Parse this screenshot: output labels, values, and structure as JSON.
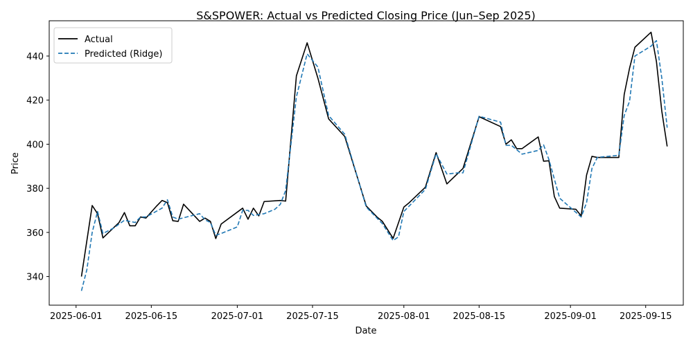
{
  "chart_data": {
    "type": "line",
    "title": "S&SPOWER: Actual vs Predicted Closing Price (Jun–Sep 2025)",
    "xlabel": "Date",
    "ylabel": "Price",
    "x_ticks": [
      "2025-06-01",
      "2025-06-15",
      "2025-07-01",
      "2025-07-15",
      "2025-08-01",
      "2025-08-15",
      "2025-09-01",
      "2025-09-15"
    ],
    "y_ticks": [
      "340",
      "360",
      "380",
      "400",
      "420",
      "440"
    ],
    "xlim": [
      "2025-05-27",
      "2025-09-22"
    ],
    "ylim": [
      327,
      456
    ],
    "grid": false,
    "legend_position": "top-left",
    "series": [
      {
        "name": "Actual",
        "color": "#000000",
        "style": "solid",
        "points": [
          [
            "2025-06-02",
            340
          ],
          [
            "2025-06-04",
            372.2
          ],
          [
            "2025-06-05",
            368.5
          ],
          [
            "2025-06-06",
            357.5
          ],
          [
            "2025-06-09",
            364.5
          ],
          [
            "2025-06-10",
            369
          ],
          [
            "2025-06-11",
            363
          ],
          [
            "2025-06-12",
            363
          ],
          [
            "2025-06-13",
            367
          ],
          [
            "2025-06-14",
            366.5
          ],
          [
            "2025-06-16",
            372
          ],
          [
            "2025-06-17",
            374.5
          ],
          [
            "2025-06-18",
            373.5
          ],
          [
            "2025-06-19",
            365.3
          ],
          [
            "2025-06-20",
            365
          ],
          [
            "2025-06-21",
            372.8
          ],
          [
            "2025-06-24",
            365
          ],
          [
            "2025-06-25",
            366.5
          ],
          [
            "2025-06-26",
            365
          ],
          [
            "2025-06-27",
            357.2
          ],
          [
            "2025-06-28",
            363.8
          ],
          [
            "2025-07-02",
            371
          ],
          [
            "2025-07-03",
            366
          ],
          [
            "2025-07-04",
            371
          ],
          [
            "2025-07-05",
            367.5
          ],
          [
            "2025-07-06",
            374
          ],
          [
            "2025-07-09",
            374.5
          ],
          [
            "2025-07-10",
            374.2
          ],
          [
            "2025-07-12",
            431
          ],
          [
            "2025-07-14",
            446
          ],
          [
            "2025-07-16",
            430
          ],
          [
            "2025-07-18",
            411.5
          ],
          [
            "2025-07-21",
            403.5
          ],
          [
            "2025-07-25",
            372
          ],
          [
            "2025-07-27",
            367
          ],
          [
            "2025-07-28",
            365
          ],
          [
            "2025-07-30",
            357.3
          ],
          [
            "2025-08-01",
            371.5
          ],
          [
            "2025-08-02",
            373.5
          ],
          [
            "2025-08-05",
            380.5
          ],
          [
            "2025-08-07",
            396.2
          ],
          [
            "2025-08-09",
            382
          ],
          [
            "2025-08-12",
            389
          ],
          [
            "2025-08-15",
            412.5
          ],
          [
            "2025-08-19",
            408
          ],
          [
            "2025-08-20",
            400
          ],
          [
            "2025-08-21",
            402
          ],
          [
            "2025-08-22",
            398
          ],
          [
            "2025-08-23",
            398
          ],
          [
            "2025-08-26",
            403.3
          ],
          [
            "2025-08-27",
            392.3
          ],
          [
            "2025-08-28",
            392.5
          ],
          [
            "2025-08-29",
            376.3
          ],
          [
            "2025-08-30",
            371
          ],
          [
            "2025-09-02",
            370.5
          ],
          [
            "2025-09-03",
            367.5
          ],
          [
            "2025-09-04",
            386
          ],
          [
            "2025-09-05",
            394.5
          ],
          [
            "2025-09-06",
            394
          ],
          [
            "2025-09-10",
            394
          ],
          [
            "2025-09-11",
            422.5
          ],
          [
            "2025-09-12",
            434.5
          ],
          [
            "2025-09-13",
            444
          ],
          [
            "2025-09-16",
            450.8
          ],
          [
            "2025-09-17",
            437.5
          ],
          [
            "2025-09-18",
            415
          ],
          [
            "2025-09-19",
            399
          ]
        ]
      },
      {
        "name": "Predicted (Ridge)",
        "color": "#1f77b4",
        "style": "dashed",
        "points": [
          [
            "2025-06-02",
            333.5
          ],
          [
            "2025-06-03",
            343
          ],
          [
            "2025-06-04",
            360
          ],
          [
            "2025-06-05",
            369.5
          ],
          [
            "2025-06-06",
            359.5
          ],
          [
            "2025-06-08",
            362
          ],
          [
            "2025-06-10",
            365.5
          ],
          [
            "2025-06-12",
            364.5
          ],
          [
            "2025-06-13",
            367
          ],
          [
            "2025-06-14",
            367
          ],
          [
            "2025-06-17",
            371
          ],
          [
            "2025-06-18",
            374.8
          ],
          [
            "2025-06-19",
            367
          ],
          [
            "2025-06-20",
            366
          ],
          [
            "2025-06-24",
            368.5
          ],
          [
            "2025-06-25",
            365.7
          ],
          [
            "2025-06-26",
            364.5
          ],
          [
            "2025-06-27",
            358.7
          ],
          [
            "2025-06-28",
            359.5
          ],
          [
            "2025-07-01",
            362.5
          ],
          [
            "2025-07-02",
            370
          ],
          [
            "2025-07-03",
            370
          ],
          [
            "2025-07-04",
            367.7
          ],
          [
            "2025-07-06",
            368.5
          ],
          [
            "2025-07-08",
            370.5
          ],
          [
            "2025-07-09",
            372.7
          ],
          [
            "2025-07-10",
            379
          ],
          [
            "2025-07-12",
            421.5
          ],
          [
            "2025-07-14",
            441
          ],
          [
            "2025-07-16",
            435
          ],
          [
            "2025-07-18",
            413
          ],
          [
            "2025-07-21",
            404.5
          ],
          [
            "2025-07-25",
            371.5
          ],
          [
            "2025-07-28",
            364
          ],
          [
            "2025-07-30",
            356.3
          ],
          [
            "2025-07-31",
            358
          ],
          [
            "2025-08-01",
            369.5
          ],
          [
            "2025-08-05",
            379.5
          ],
          [
            "2025-08-07",
            395.7
          ],
          [
            "2025-08-09",
            386.5
          ],
          [
            "2025-08-11",
            387
          ],
          [
            "2025-08-12",
            387
          ],
          [
            "2025-08-15",
            412.7
          ],
          [
            "2025-08-19",
            410
          ],
          [
            "2025-08-20",
            399.5
          ],
          [
            "2025-08-21",
            399.5
          ],
          [
            "2025-08-23",
            395.5
          ],
          [
            "2025-08-26",
            397.2
          ],
          [
            "2025-08-27",
            399.7
          ],
          [
            "2025-08-28",
            393
          ],
          [
            "2025-08-30",
            375.5
          ],
          [
            "2025-09-03",
            367
          ],
          [
            "2025-09-04",
            373.5
          ],
          [
            "2025-09-05",
            389
          ],
          [
            "2025-09-06",
            394
          ],
          [
            "2025-09-10",
            395
          ],
          [
            "2025-09-11",
            413
          ],
          [
            "2025-09-12",
            419.5
          ],
          [
            "2025-09-13",
            440
          ],
          [
            "2025-09-15",
            443
          ],
          [
            "2025-09-16",
            444.5
          ],
          [
            "2025-09-17",
            447
          ],
          [
            "2025-09-18",
            430
          ],
          [
            "2025-09-19",
            407.5
          ]
        ]
      }
    ]
  }
}
